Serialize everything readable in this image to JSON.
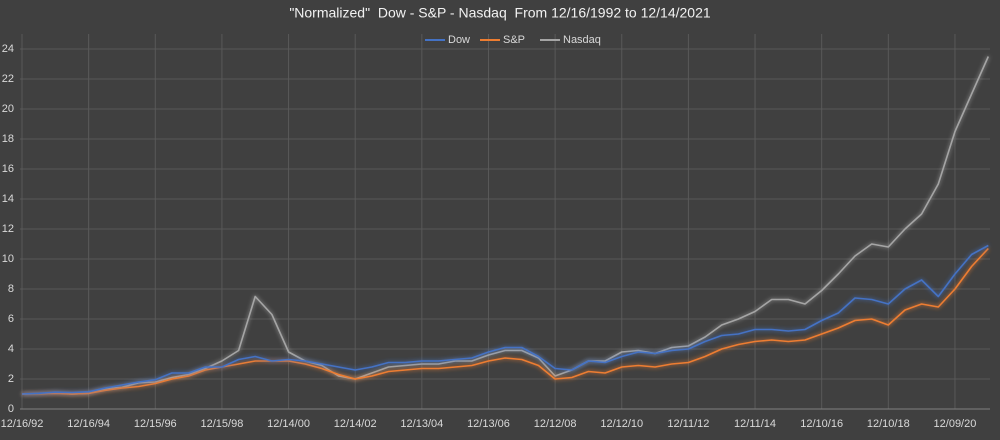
{
  "chart_data": {
    "type": "line",
    "title": "\"Normalized\"  Dow - S&P - Nasdaq  From 12/16/1992 to 12/14/2021",
    "categories": [
      "12/16/92",
      null,
      null,
      null,
      "12/16/94",
      null,
      null,
      null,
      "12/15/96",
      null,
      null,
      null,
      "12/15/98",
      null,
      null,
      null,
      "12/14/00",
      null,
      null,
      null,
      "12/14/02",
      null,
      null,
      null,
      "12/13/04",
      null,
      null,
      null,
      "12/13/06",
      null,
      null,
      null,
      "12/12/08",
      null,
      null,
      null,
      "12/12/10",
      null,
      null,
      null,
      "12/11/12",
      null,
      null,
      null,
      "12/11/14",
      null,
      null,
      null,
      "12/10/16",
      null,
      null,
      null,
      "12/10/18",
      null,
      null,
      null,
      "12/09/20",
      null,
      null
    ],
    "series": [
      {
        "name": "Dow",
        "color": "#4472c4",
        "values": [
          1,
          1.05,
          1.12,
          1.1,
          1.15,
          1.4,
          1.6,
          1.8,
          1.95,
          2.4,
          2.4,
          2.8,
          2.8,
          3.3,
          3.5,
          3.2,
          3.3,
          3.2,
          3.0,
          2.8,
          2.6,
          2.8,
          3.1,
          3.1,
          3.2,
          3.2,
          3.3,
          3.4,
          3.8,
          4.1,
          4.1,
          3.5,
          2.7,
          2.6,
          3.2,
          3.1,
          3.5,
          3.8,
          3.7,
          3.9,
          4.0,
          4.5,
          4.9,
          5.0,
          5.3,
          5.3,
          5.2,
          5.3,
          5.9,
          6.4,
          7.4,
          7.3,
          7.0,
          8.0,
          8.6,
          7.5,
          9.0,
          10.3,
          10.9
        ]
      },
      {
        "name": "S&P",
        "color": "#ed7d31",
        "values": [
          1,
          1.03,
          1.05,
          1.0,
          1.05,
          1.25,
          1.4,
          1.5,
          1.7,
          2.0,
          2.2,
          2.6,
          2.8,
          3.0,
          3.2,
          3.2,
          3.2,
          3.0,
          2.7,
          2.3,
          2.0,
          2.2,
          2.5,
          2.6,
          2.7,
          2.7,
          2.8,
          2.9,
          3.2,
          3.4,
          3.3,
          2.9,
          2.0,
          2.1,
          2.5,
          2.4,
          2.8,
          2.9,
          2.8,
          3.0,
          3.1,
          3.5,
          4.0,
          4.3,
          4.5,
          4.6,
          4.5,
          4.6,
          5.0,
          5.4,
          5.9,
          6.0,
          5.6,
          6.6,
          7.0,
          6.8,
          8.0,
          9.5,
          10.7
        ]
      },
      {
        "name": "Nasdaq",
        "color": "#a5a5a5",
        "values": [
          1,
          1.02,
          1.08,
          1.0,
          1.05,
          1.35,
          1.45,
          1.75,
          1.8,
          2.1,
          2.3,
          2.7,
          3.2,
          3.9,
          7.5,
          6.3,
          3.8,
          3.2,
          2.9,
          2.2,
          2.0,
          2.4,
          2.8,
          2.9,
          3.0,
          3.0,
          3.2,
          3.2,
          3.6,
          3.9,
          3.9,
          3.4,
          2.2,
          2.6,
          3.2,
          3.2,
          3.8,
          3.9,
          3.7,
          4.1,
          4.2,
          4.8,
          5.6,
          6.0,
          6.5,
          7.3,
          7.3,
          7.0,
          7.9,
          9.0,
          10.2,
          11.0,
          10.8,
          12.0,
          13.0,
          15.0,
          18.5,
          21.0,
          23.5
        ]
      }
    ],
    "ylim": [
      0,
      25
    ],
    "yticks": [
      0,
      2,
      4,
      6,
      8,
      10,
      12,
      14,
      16,
      18,
      20,
      22,
      24
    ],
    "grid": true,
    "legend": "top"
  }
}
